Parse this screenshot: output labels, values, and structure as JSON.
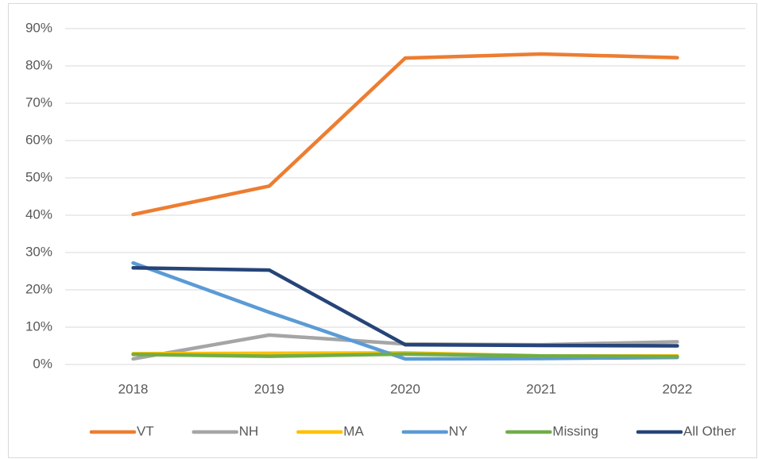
{
  "chart_data": {
    "type": "line",
    "categories": [
      "2018",
      "2019",
      "2020",
      "2021",
      "2022"
    ],
    "series": [
      {
        "name": "VT",
        "color": "#ed7d31",
        "values": [
          40.2,
          47.8,
          82.1,
          83.2,
          82.2
        ]
      },
      {
        "name": "NH",
        "color": "#a5a5a5",
        "values": [
          1.5,
          7.9,
          5.5,
          5.3,
          6.1
        ]
      },
      {
        "name": "MA",
        "color": "#ffc000",
        "values": [
          2.9,
          3.0,
          3.1,
          2.3,
          2.3
        ]
      },
      {
        "name": "NY",
        "color": "#5b9bd5",
        "values": [
          27.2,
          14.0,
          1.5,
          1.6,
          1.9
        ]
      },
      {
        "name": "Missing",
        "color": "#70ad47",
        "values": [
          2.7,
          2.2,
          2.8,
          2.3,
          2.1
        ]
      },
      {
        "name": "All Other",
        "color": "#264478",
        "values": [
          25.9,
          25.3,
          5.3,
          5.1,
          5.0
        ]
      }
    ],
    "ylim": [
      0,
      90
    ],
    "yticks": [
      {
        "value": 0,
        "label": "0%"
      },
      {
        "value": 10,
        "label": "10%"
      },
      {
        "value": 20,
        "label": "20%"
      },
      {
        "value": 30,
        "label": "30%"
      },
      {
        "value": 40,
        "label": "40%"
      },
      {
        "value": 50,
        "label": "50%"
      },
      {
        "value": 60,
        "label": "60%"
      },
      {
        "value": 70,
        "label": "70%"
      },
      {
        "value": 80,
        "label": "80%"
      },
      {
        "value": 90,
        "label": "90%"
      }
    ],
    "grid": true,
    "legend": "bottom"
  }
}
